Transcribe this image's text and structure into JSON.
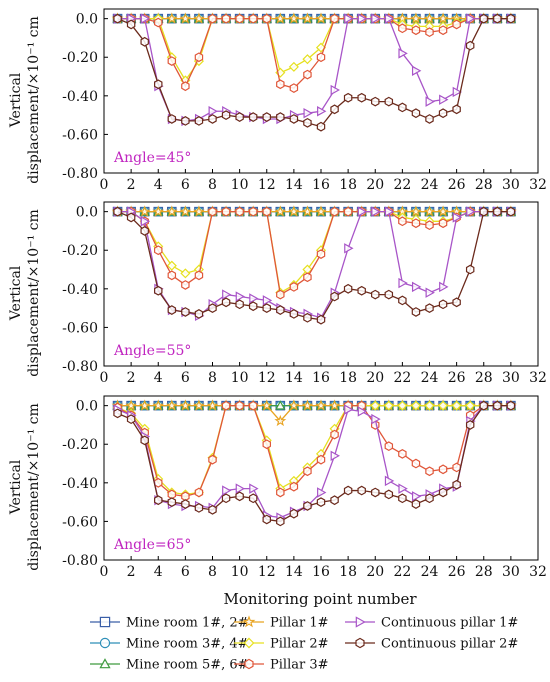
{
  "figure": {
    "xlabel": "Monitoring point number",
    "ylabel_line1": "Vertical",
    "ylabel_line2": "displacement/×10⁻¹ cm"
  },
  "legend": [
    {
      "label": "Mine room 1#, 2#",
      "color": "#3a5fa8",
      "marker": "square"
    },
    {
      "label": "Pillar 1#",
      "color": "#e8a321",
      "marker": "star"
    },
    {
      "label": "Continuous pillar 1#",
      "color": "#a855c8",
      "marker": "triangle-right"
    },
    {
      "label": "Mine room 3#, 4#",
      "color": "#2f8fb8",
      "marker": "circle"
    },
    {
      "label": "Pillar 2#",
      "color": "#e6e020",
      "marker": "diamond"
    },
    {
      "label": "Continuous pillar 2#",
      "color": "#6b2a1c",
      "marker": "hexagon"
    },
    {
      "label": "Mine room 5#, 6#",
      "color": "#3f9a3f",
      "marker": "triangle-up"
    },
    {
      "label": "Pillar 3#",
      "color": "#e0573a",
      "marker": "hexagon"
    }
  ],
  "chart_data": [
    {
      "type": "line",
      "annotation": "Angle=45°",
      "xlim": [
        0,
        32
      ],
      "ylim": [
        -0.8,
        0.05
      ],
      "xticks": [
        "0",
        "2",
        "4",
        "6",
        "8",
        "10",
        "12",
        "14",
        "16",
        "18",
        "20",
        "22",
        "24",
        "26",
        "28",
        "30",
        "32"
      ],
      "yticks": [
        "0.0",
        "-0.20",
        "-0.40",
        "-0.60",
        "-0.80"
      ],
      "x": [
        1,
        2,
        3,
        4,
        5,
        6,
        7,
        8,
        9,
        10,
        11,
        12,
        13,
        14,
        15,
        16,
        17,
        18,
        19,
        20,
        21,
        22,
        23,
        24,
        25,
        26,
        27,
        28,
        29,
        30
      ],
      "series": [
        {
          "name": "Mine room 1#, 2#",
          "values": [
            0,
            0,
            0,
            0,
            0,
            0,
            0,
            0,
            0,
            0,
            0,
            0,
            0,
            0,
            0,
            0,
            0,
            0,
            0,
            0,
            0,
            0,
            0,
            0,
            0,
            0,
            0,
            0,
            0,
            0
          ]
        },
        {
          "name": "Mine room 3#, 4#",
          "values": [
            0,
            0,
            0,
            0,
            0,
            0,
            0,
            0,
            0,
            0,
            0,
            0,
            0,
            0,
            0,
            0,
            0,
            0,
            0,
            0,
            0,
            0,
            0,
            0,
            0,
            0,
            0,
            0,
            0,
            0
          ]
        },
        {
          "name": "Mine room 5#, 6#",
          "values": [
            0,
            0,
            0,
            0,
            0,
            0,
            0,
            0,
            0,
            0,
            0,
            0,
            0,
            0,
            0,
            0,
            0,
            0,
            0,
            0,
            0,
            0,
            0,
            0,
            0,
            0,
            0,
            0,
            0,
            0
          ]
        },
        {
          "name": "Pillar 1#",
          "values": [
            0,
            0,
            0,
            0,
            0,
            0,
            0,
            0,
            0,
            0,
            0,
            0,
            0,
            0,
            0,
            0,
            0,
            0,
            0,
            0,
            0,
            0,
            0,
            0,
            0,
            0,
            0,
            0,
            0,
            0
          ]
        },
        {
          "name": "Pillar 2#",
          "values": [
            0,
            0,
            0,
            0,
            -0.2,
            -0.32,
            -0.22,
            0,
            0,
            0,
            0,
            0,
            -0.28,
            -0.25,
            -0.21,
            -0.15,
            0,
            0,
            0,
            0,
            0,
            -0.03,
            -0.04,
            -0.04,
            -0.04,
            -0.02,
            0,
            0,
            0,
            0
          ]
        },
        {
          "name": "Pillar 3#",
          "values": [
            0,
            0,
            0,
            -0.02,
            -0.22,
            -0.35,
            -0.2,
            0,
            0,
            0,
            0,
            0,
            -0.34,
            -0.36,
            -0.29,
            -0.2,
            0,
            0,
            0,
            0,
            0,
            -0.05,
            -0.06,
            -0.07,
            -0.06,
            -0.03,
            0,
            0,
            0,
            0
          ]
        },
        {
          "name": "Continuous pillar 1#",
          "values": [
            0,
            0,
            0,
            -0.35,
            -0.52,
            -0.53,
            -0.52,
            -0.48,
            -0.48,
            -0.5,
            -0.51,
            -0.52,
            -0.52,
            -0.5,
            -0.49,
            -0.48,
            -0.37,
            0,
            0,
            0,
            0,
            -0.18,
            -0.27,
            -0.43,
            -0.42,
            -0.38,
            0,
            0,
            0,
            0
          ]
        },
        {
          "name": "Continuous pillar 2#",
          "values": [
            0,
            -0.03,
            -0.12,
            -0.34,
            -0.52,
            -0.53,
            -0.53,
            -0.52,
            -0.5,
            -0.51,
            -0.51,
            -0.51,
            -0.51,
            -0.52,
            -0.54,
            -0.56,
            -0.47,
            -0.41,
            -0.41,
            -0.43,
            -0.43,
            -0.46,
            -0.49,
            -0.52,
            -0.49,
            -0.47,
            -0.14,
            0,
            0,
            0
          ]
        }
      ]
    },
    {
      "type": "line",
      "annotation": "Angle=55°",
      "xlim": [
        0,
        32
      ],
      "ylim": [
        -0.8,
        0.05
      ],
      "xticks": [
        "0",
        "2",
        "4",
        "6",
        "8",
        "10",
        "12",
        "14",
        "16",
        "18",
        "20",
        "22",
        "24",
        "26",
        "28",
        "30",
        "32"
      ],
      "yticks": [
        "0.0",
        "-0.20",
        "-0.40",
        "-0.60",
        "-0.80"
      ],
      "x": [
        1,
        2,
        3,
        4,
        5,
        6,
        7,
        8,
        9,
        10,
        11,
        12,
        13,
        14,
        15,
        16,
        17,
        18,
        19,
        20,
        21,
        22,
        23,
        24,
        25,
        26,
        27,
        28,
        29,
        30
      ],
      "series": [
        {
          "name": "Mine room 1#, 2#",
          "values": [
            0,
            0,
            0,
            0,
            0,
            0,
            0,
            0,
            0,
            0,
            0,
            0,
            0,
            0,
            0,
            0,
            0,
            0,
            0,
            0,
            0,
            0,
            0,
            0,
            0,
            0,
            0,
            0,
            0,
            0
          ]
        },
        {
          "name": "Mine room 3#, 4#",
          "values": [
            0,
            0,
            0,
            0,
            0,
            0,
            0,
            0,
            0,
            0,
            0,
            0,
            0,
            0,
            0,
            0,
            0,
            0,
            0,
            0,
            0,
            0,
            0,
            0,
            0,
            0,
            0,
            0,
            0,
            0
          ]
        },
        {
          "name": "Mine room 5#, 6#",
          "values": [
            0,
            0,
            0,
            0,
            0,
            0,
            0,
            0,
            0,
            0,
            0,
            0,
            0,
            0,
            0,
            0,
            0,
            0,
            0,
            0,
            0,
            0,
            0,
            0,
            0,
            0,
            0,
            0,
            0,
            0
          ]
        },
        {
          "name": "Pillar 1#",
          "values": [
            0,
            0,
            0,
            0,
            0,
            0,
            0,
            0,
            0,
            0,
            0,
            0,
            0,
            0,
            0,
            0,
            0,
            0,
            0,
            0,
            0,
            0,
            0,
            0,
            0,
            0,
            0,
            0,
            0,
            0
          ]
        },
        {
          "name": "Pillar 2#",
          "values": [
            0,
            0,
            -0.05,
            -0.18,
            -0.28,
            -0.32,
            -0.3,
            0,
            0,
            0,
            0,
            0,
            -0.42,
            -0.38,
            -0.3,
            -0.2,
            0,
            0,
            0,
            0,
            0,
            -0.03,
            -0.04,
            -0.05,
            -0.05,
            -0.03,
            0,
            0,
            0,
            0
          ]
        },
        {
          "name": "Pillar 3#",
          "values": [
            0,
            0,
            -0.05,
            -0.2,
            -0.33,
            -0.38,
            -0.33,
            0,
            0,
            0,
            0,
            0,
            -0.43,
            -0.39,
            -0.34,
            -0.22,
            0,
            0,
            0,
            0,
            0,
            -0.05,
            -0.06,
            -0.07,
            -0.06,
            -0.03,
            0,
            0,
            0,
            0
          ]
        },
        {
          "name": "Continuous pillar 1#",
          "values": [
            0,
            0,
            -0.05,
            -0.4,
            -0.51,
            -0.52,
            -0.54,
            -0.48,
            -0.43,
            -0.44,
            -0.45,
            -0.46,
            -0.5,
            -0.52,
            -0.53,
            -0.55,
            -0.42,
            -0.19,
            0,
            0,
            0,
            -0.37,
            -0.39,
            -0.42,
            -0.39,
            -0.03,
            0,
            0,
            0,
            0
          ]
        },
        {
          "name": "Continuous pillar 2#",
          "values": [
            0,
            -0.03,
            -0.1,
            -0.41,
            -0.51,
            -0.52,
            -0.53,
            -0.5,
            -0.47,
            -0.48,
            -0.49,
            -0.5,
            -0.51,
            -0.53,
            -0.55,
            -0.56,
            -0.44,
            -0.4,
            -0.41,
            -0.43,
            -0.43,
            -0.46,
            -0.52,
            -0.5,
            -0.48,
            -0.47,
            -0.3,
            0,
            0,
            0
          ]
        }
      ]
    },
    {
      "type": "line",
      "annotation": "Angle=65°",
      "xlim": [
        0,
        32
      ],
      "ylim": [
        -0.8,
        0.05
      ],
      "xticks": [
        "0",
        "2",
        "4",
        "6",
        "8",
        "10",
        "12",
        "14",
        "16",
        "18",
        "20",
        "22",
        "24",
        "26",
        "28",
        "30",
        "32"
      ],
      "yticks": [
        "0.0",
        "-0.20",
        "-0.40",
        "-0.60",
        "-0.80"
      ],
      "x": [
        1,
        2,
        3,
        4,
        5,
        6,
        7,
        8,
        9,
        10,
        11,
        12,
        13,
        14,
        15,
        16,
        17,
        18,
        19,
        20,
        21,
        22,
        23,
        24,
        25,
        26,
        27,
        28,
        29,
        30
      ],
      "series": [
        {
          "name": "Mine room 1#, 2#",
          "values": [
            0,
            0,
            0,
            0,
            0,
            0,
            0,
            0,
            0,
            0,
            0,
            0,
            0,
            0,
            0,
            0,
            0,
            0,
            0,
            0,
            0,
            0,
            0,
            0,
            0,
            0,
            0,
            0,
            0,
            0
          ]
        },
        {
          "name": "Mine room 3#, 4#",
          "values": [
            0,
            0,
            0,
            0,
            0,
            0,
            0,
            0,
            0,
            0,
            0,
            0,
            0,
            0,
            0,
            0,
            0,
            0,
            0,
            0,
            0,
            0,
            0,
            0,
            0,
            0,
            0,
            0,
            0,
            0
          ]
        },
        {
          "name": "Mine room 5#, 6#",
          "values": [
            0,
            0,
            0,
            0,
            0,
            0,
            0,
            0,
            0,
            0,
            0,
            0,
            0,
            0,
            0,
            0,
            0,
            0,
            0,
            0,
            0,
            0,
            0,
            0,
            0,
            0,
            0,
            0,
            0,
            0
          ]
        },
        {
          "name": "Pillar 1#",
          "values": [
            0,
            0,
            0,
            0,
            0,
            0,
            0,
            0,
            0,
            0,
            0,
            0,
            -0.08,
            0,
            0,
            0,
            0,
            0,
            0,
            0,
            0,
            0,
            0,
            0,
            0,
            0,
            0,
            0,
            0,
            0
          ]
        },
        {
          "name": "Pillar 2#",
          "values": [
            -0.01,
            -0.04,
            -0.12,
            -0.38,
            -0.45,
            -0.46,
            -0.45,
            -0.27,
            0,
            0,
            0,
            -0.18,
            -0.43,
            -0.39,
            -0.32,
            -0.25,
            -0.12,
            0,
            0,
            0,
            0,
            0,
            0,
            0,
            0,
            0,
            0,
            0,
            0,
            0
          ]
        },
        {
          "name": "Pillar 3#",
          "values": [
            -0.01,
            -0.05,
            -0.14,
            -0.4,
            -0.46,
            -0.47,
            -0.45,
            -0.28,
            0,
            0,
            0,
            -0.2,
            -0.45,
            -0.42,
            -0.34,
            -0.28,
            -0.15,
            0,
            0,
            -0.1,
            -0.21,
            -0.25,
            -0.3,
            -0.34,
            -0.33,
            -0.32,
            -0.05,
            0,
            0,
            0
          ]
        },
        {
          "name": "Continuous pillar 1#",
          "values": [
            -0.02,
            -0.05,
            -0.16,
            -0.49,
            -0.51,
            -0.52,
            -0.52,
            -0.53,
            -0.44,
            -0.43,
            -0.43,
            -0.57,
            -0.58,
            -0.55,
            -0.52,
            -0.45,
            -0.26,
            -0.02,
            -0.03,
            -0.07,
            -0.39,
            -0.43,
            -0.47,
            -0.46,
            -0.43,
            -0.42,
            -0.08,
            0,
            0,
            0
          ]
        },
        {
          "name": "Continuous pillar 2#",
          "values": [
            -0.04,
            -0.07,
            -0.18,
            -0.49,
            -0.5,
            -0.51,
            -0.53,
            -0.54,
            -0.48,
            -0.47,
            -0.48,
            -0.59,
            -0.6,
            -0.56,
            -0.52,
            -0.5,
            -0.49,
            -0.44,
            -0.44,
            -0.45,
            -0.46,
            -0.48,
            -0.51,
            -0.48,
            -0.45,
            -0.41,
            -0.1,
            0,
            0,
            0
          ]
        }
      ]
    }
  ]
}
